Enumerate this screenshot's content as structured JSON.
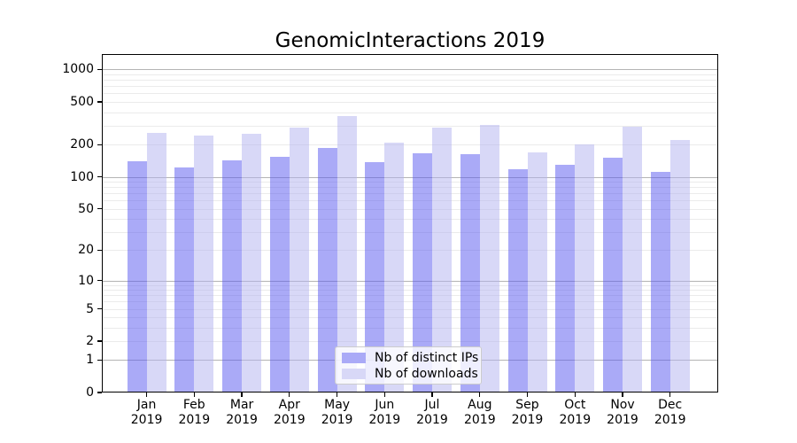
{
  "chart_data": {
    "type": "bar",
    "title": "GenomicInteractions 2019",
    "categories": [
      "Jan 2019",
      "Feb 2019",
      "Mar 2019",
      "Apr 2019",
      "May 2019",
      "Jun 2019",
      "Jul 2019",
      "Aug 2019",
      "Sep 2019",
      "Oct 2019",
      "Nov 2019",
      "Dec 2019"
    ],
    "series": [
      {
        "name": "Nb of distinct IPs",
        "color": "rgba(85,85,240,0.5)",
        "legend_color": "#aaaaf7",
        "values": [
          140,
          123,
          142,
          155,
          187,
          138,
          166,
          163,
          117,
          129,
          151,
          111
        ]
      },
      {
        "name": "Nb of downloads",
        "color": "rgba(177,177,240,0.5)",
        "legend_color": "#d8d8f7",
        "values": [
          258,
          243,
          252,
          287,
          371,
          210,
          287,
          305,
          170,
          202,
          296,
          219
        ]
      }
    ],
    "xlabel": "",
    "ylabel": "",
    "yscale": "log1p",
    "yticks": [
      0,
      1,
      2,
      5,
      10,
      20,
      50,
      100,
      200,
      500,
      1000
    ],
    "ylim": [
      0,
      1400
    ],
    "grid": {
      "axis": "y",
      "major_color": "#b4b4b4",
      "minor_color": "#ebebeb"
    },
    "legend_position": "lower center"
  }
}
